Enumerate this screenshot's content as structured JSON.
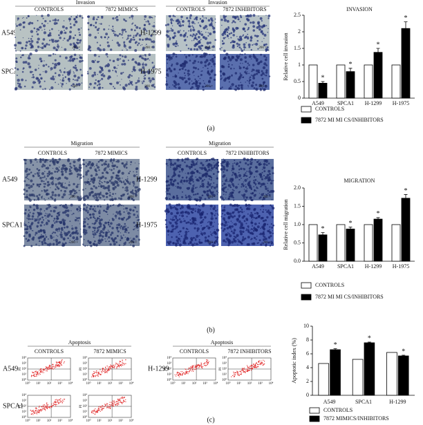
{
  "panels": {
    "a": {
      "label": "(a)",
      "scale": "200 ×",
      "groups": [
        {
          "title": "Invasion",
          "columns": [
            "CONTROLS",
            "7872 MIMICS"
          ],
          "rows": [
            "A549",
            "SPCA1"
          ]
        },
        {
          "title": "Invasion",
          "columns": [
            "CONTROLS",
            "7872 INHIBITORS"
          ],
          "rows": [
            "H-1299",
            "H-1975"
          ]
        }
      ]
    },
    "b": {
      "label": "(b)",
      "scale": "200 ×",
      "groups": [
        {
          "title": "Migration",
          "columns": [
            "CONTROLS",
            "7872 MIMICS"
          ],
          "rows": [
            "A549",
            "SPCA1"
          ]
        },
        {
          "title": "Migration",
          "columns": [
            "CONTROLS",
            "7872 INHIBITORS"
          ],
          "rows": [
            "H-1299",
            "H-1975"
          ]
        }
      ]
    },
    "c": {
      "label": "(c)",
      "axis_ticks": [
        "10⁰",
        "10¹",
        "10²",
        "10³",
        "10⁴"
      ],
      "axis_label": "PI",
      "groups": [
        {
          "title": "Apoptosis",
          "columns": [
            "CONTROLS",
            "7872 MIMICS"
          ],
          "rows": [
            "A549",
            "SPCA1"
          ]
        },
        {
          "title": "Apoptosis",
          "columns": [
            "CONTROLS",
            "7872 INHIBITORS"
          ],
          "rows": [
            "H-1299"
          ]
        }
      ]
    }
  },
  "chart_data": [
    {
      "type": "bar",
      "title": "INVASION",
      "ylabel": "Relative cell invasion",
      "categories": [
        "A549",
        "SPCA1",
        "H-1299",
        "H-1975"
      ],
      "series": [
        {
          "name": "CONTROLS",
          "color": "#ffffff",
          "values": [
            1,
            1,
            1,
            1
          ]
        },
        {
          "name": "7872 MI MI CS/INHIBITORS",
          "color": "#000000",
          "values": [
            0.45,
            0.8,
            1.38,
            2.1
          ],
          "errors": [
            0.05,
            0.1,
            0.12,
            0.2
          ]
        }
      ],
      "annotations": [
        "*",
        "*",
        "*",
        "*"
      ],
      "ylim": [
        0,
        2.5
      ],
      "yticks": [
        0,
        0.5,
        1,
        1.5,
        2,
        2.5
      ]
    },
    {
      "type": "bar",
      "title": "MIGRATION",
      "ylabel": "Relative cell migration",
      "categories": [
        "A549",
        "SPCA1",
        "H-1299",
        "H-1975"
      ],
      "series": [
        {
          "name": "CONTROLS",
          "color": "#ffffff",
          "values": [
            1,
            1,
            1,
            1
          ]
        },
        {
          "name": "7872 MI MI CS/INHIBITORS",
          "color": "#000000",
          "values": [
            0.72,
            0.88,
            1.15,
            1.72
          ],
          "errors": [
            0.06,
            0.05,
            0.04,
            0.1
          ]
        }
      ],
      "annotations": [
        "*",
        "*",
        "*",
        "*"
      ],
      "ylim": [
        0,
        2
      ],
      "yticks": [
        {
          "value": 0,
          "label": "0.0"
        },
        0.5,
        {
          "value": 1,
          "label": "1.0"
        },
        1.5,
        {
          "value": 2,
          "label": "2.0"
        }
      ]
    },
    {
      "type": "bar",
      "ylabel": "Apoptotic index (%)",
      "categories": [
        "A549",
        "SPCA1",
        "H-1299"
      ],
      "series": [
        {
          "name": "CONTROLS",
          "color": "#ffffff",
          "values": [
            4.6,
            5.2,
            6.2
          ]
        },
        {
          "name": "7872 MIMICS/INHIBITORS",
          "color": "#000000",
          "values": [
            6.6,
            7.6,
            5.7
          ],
          "errors": [
            0.15,
            0.1,
            0.1
          ]
        }
      ],
      "annotations": [
        "*",
        "*",
        "*"
      ],
      "ylim": [
        0,
        10
      ],
      "yticks": [
        0,
        2,
        4,
        6,
        8,
        10
      ]
    }
  ]
}
